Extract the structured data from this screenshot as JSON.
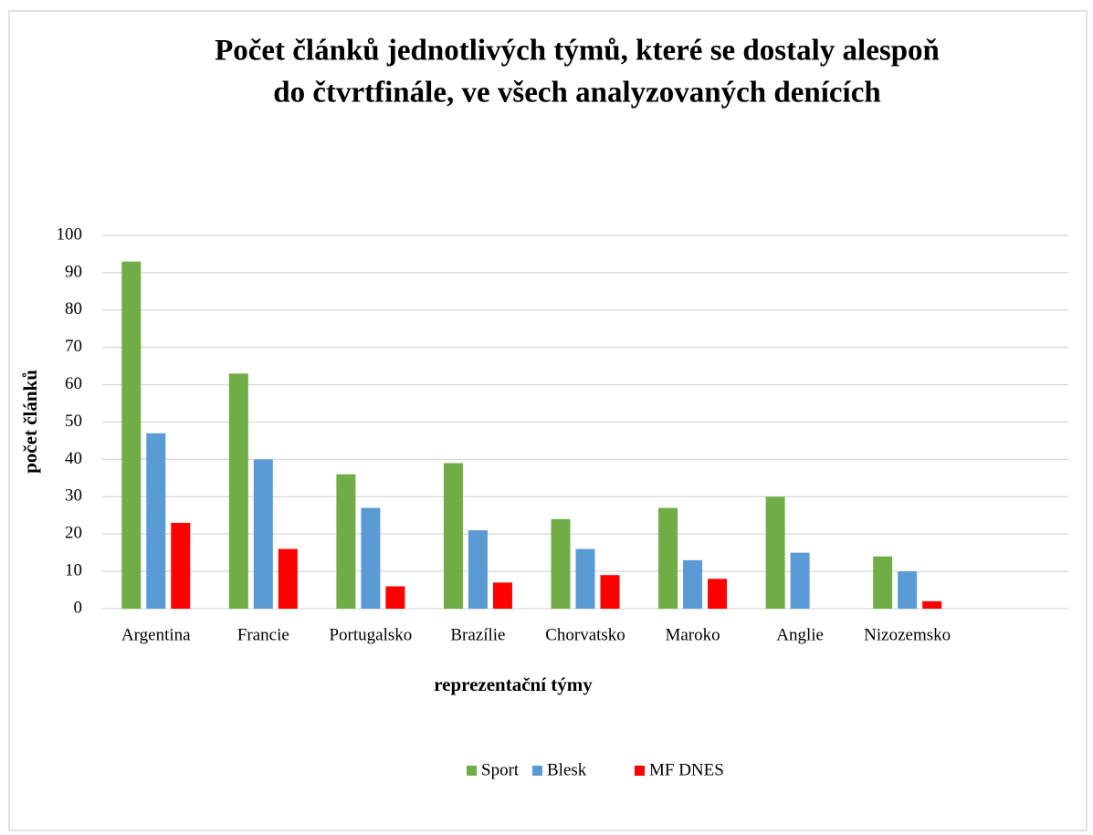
{
  "chart_data": {
    "type": "bar",
    "title": [
      "Počet článků jednotlivých týmů, které se dostaly alespoň",
      "do čtvrtfinále, ve všech analyzovaných denících"
    ],
    "x_label": "reprezentační týmy",
    "y_label": "počet článků",
    "categories": [
      "Argentina",
      "Francie",
      "Portugalsko",
      "Brazílie",
      "Chorvatsko",
      "Maroko",
      "Anglie",
      "Nizozemsko",
      null
    ],
    "series": [
      {
        "name": "Sport",
        "color": "#70ad47",
        "values": [
          93,
          63,
          36,
          39,
          24,
          27,
          30,
          14,
          null
        ]
      },
      {
        "name": "Blesk",
        "color": "#5b9bd5",
        "values": [
          47,
          40,
          27,
          21,
          16,
          13,
          15,
          10,
          null
        ]
      },
      {
        "name": "MF DNES",
        "color": "#ff0000",
        "values": [
          23,
          16,
          6,
          7,
          9,
          8,
          0,
          2,
          null
        ]
      }
    ],
    "ylim": [
      0,
      100
    ],
    "yticks": [
      0,
      10,
      20,
      30,
      40,
      50,
      60,
      70,
      80,
      90,
      100
    ],
    "grid": true,
    "legend": "bottom"
  }
}
